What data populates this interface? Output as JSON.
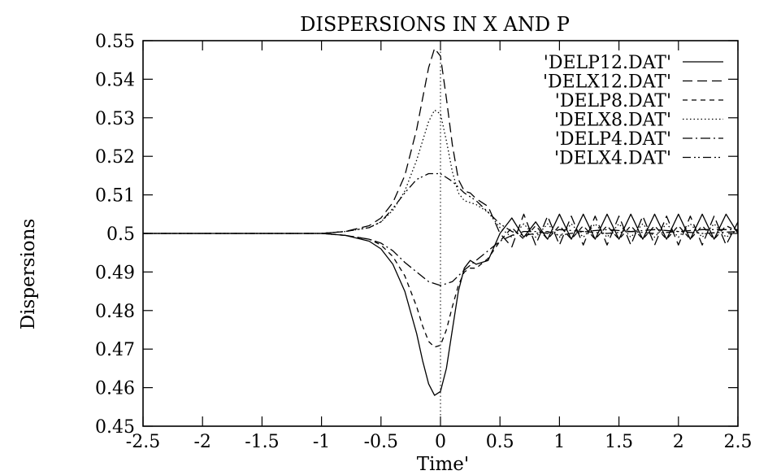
{
  "chart_data": {
    "type": "line",
    "title": "DISPERSIONS IN X AND P",
    "xlabel": "Time'",
    "ylabel": "Dispersions",
    "xlim": [
      -2.5,
      2.5
    ],
    "ylim": [
      0.45,
      0.55
    ],
    "xticks": [
      "-2.5",
      "-2",
      "-1.5",
      "-1",
      "-0.5",
      "0",
      "0.5",
      "1",
      "1.5",
      "2",
      "2.5"
    ],
    "yticks": [
      "0.45",
      "0.46",
      "0.47",
      "0.48",
      "0.49",
      "0.5",
      "0.51",
      "0.52",
      "0.53",
      "0.54",
      "0.55"
    ],
    "grid": false,
    "legend_position": "top-right",
    "annotations": [
      "vertical dotted line at x = 0"
    ],
    "series": [
      {
        "name": "'DELP12.DAT'",
        "linestyle": "solid",
        "x": [
          -2.5,
          -2.0,
          -1.5,
          -1.0,
          -0.8,
          -0.6,
          -0.5,
          -0.4,
          -0.3,
          -0.2,
          -0.15,
          -0.1,
          -0.05,
          0.0,
          0.05,
          0.1,
          0.15,
          0.2,
          0.25,
          0.3,
          0.4,
          0.5,
          0.6,
          0.7,
          0.8,
          0.9,
          1.0,
          1.1,
          1.2,
          1.3,
          1.4,
          1.5,
          1.6,
          1.7,
          1.8,
          1.9,
          2.0,
          2.1,
          2.2,
          2.3,
          2.4,
          2.5
        ],
        "y": [
          0.5,
          0.5,
          0.5,
          0.5,
          0.4995,
          0.498,
          0.496,
          0.492,
          0.485,
          0.474,
          0.467,
          0.461,
          0.458,
          0.459,
          0.465,
          0.475,
          0.485,
          0.491,
          0.493,
          0.492,
          0.493,
          0.5,
          0.504,
          0.499,
          0.503,
          0.4985,
          0.505,
          0.4985,
          0.505,
          0.4985,
          0.505,
          0.4985,
          0.505,
          0.4985,
          0.505,
          0.4985,
          0.505,
          0.4985,
          0.505,
          0.4985,
          0.505,
          0.5
        ]
      },
      {
        "name": "'DELX12.DAT'",
        "linestyle": "dashed",
        "x": [
          -2.5,
          -2.0,
          -1.5,
          -1.0,
          -0.8,
          -0.6,
          -0.5,
          -0.4,
          -0.3,
          -0.2,
          -0.15,
          -0.1,
          -0.05,
          0.0,
          0.05,
          0.1,
          0.15,
          0.2,
          0.25,
          0.3,
          0.4,
          0.5,
          0.6,
          0.7,
          0.8,
          0.9,
          1.0,
          1.1,
          1.2,
          1.3,
          1.4,
          1.5,
          1.6,
          1.7,
          1.8,
          1.9,
          2.0,
          2.1,
          2.2,
          2.3,
          2.4,
          2.5
        ],
        "y": [
          0.5,
          0.5,
          0.5,
          0.5,
          0.5005,
          0.502,
          0.504,
          0.508,
          0.515,
          0.527,
          0.535,
          0.543,
          0.548,
          0.546,
          0.535,
          0.523,
          0.514,
          0.511,
          0.5105,
          0.509,
          0.507,
          0.5,
          0.4965,
          0.505,
          0.497,
          0.5045,
          0.497,
          0.5045,
          0.497,
          0.5045,
          0.497,
          0.5045,
          0.497,
          0.5045,
          0.497,
          0.5045,
          0.497,
          0.5045,
          0.497,
          0.5045,
          0.497,
          0.503
        ]
      },
      {
        "name": "'DELP8.DAT'",
        "linestyle": "short-dashed",
        "x": [
          -2.5,
          -2.0,
          -1.5,
          -1.0,
          -0.8,
          -0.6,
          -0.5,
          -0.4,
          -0.3,
          -0.2,
          -0.15,
          -0.1,
          -0.05,
          0.0,
          0.05,
          0.1,
          0.15,
          0.2,
          0.25,
          0.3,
          0.4,
          0.5,
          0.6,
          0.7,
          0.8,
          0.9,
          1.0,
          1.1,
          1.2,
          1.3,
          1.4,
          1.5,
          1.6,
          1.7,
          1.8,
          1.9,
          2.0,
          2.1,
          2.2,
          2.3,
          2.4,
          2.5
        ],
        "y": [
          0.5,
          0.5,
          0.5,
          0.5,
          0.4995,
          0.4985,
          0.497,
          0.494,
          0.489,
          0.481,
          0.476,
          0.472,
          0.4705,
          0.471,
          0.475,
          0.481,
          0.4865,
          0.49,
          0.491,
          0.491,
          0.4935,
          0.498,
          0.5015,
          0.4985,
          0.502,
          0.4985,
          0.502,
          0.4985,
          0.502,
          0.4985,
          0.502,
          0.4985,
          0.502,
          0.4985,
          0.502,
          0.4985,
          0.502,
          0.4985,
          0.502,
          0.4985,
          0.502,
          0.5005
        ]
      },
      {
        "name": "'DELX8.DAT'",
        "linestyle": "dotted",
        "x": [
          -2.5,
          -2.0,
          -1.5,
          -1.0,
          -0.8,
          -0.6,
          -0.5,
          -0.4,
          -0.3,
          -0.2,
          -0.15,
          -0.1,
          -0.05,
          0.0,
          0.05,
          0.1,
          0.15,
          0.2,
          0.25,
          0.3,
          0.4,
          0.5,
          0.6,
          0.7,
          0.8,
          0.9,
          1.0,
          1.1,
          1.2,
          1.3,
          1.4,
          1.5,
          1.6,
          1.7,
          1.8,
          1.9,
          2.0,
          2.1,
          2.2,
          2.3,
          2.4,
          2.5
        ],
        "y": [
          0.5,
          0.5,
          0.5,
          0.5,
          0.5005,
          0.5015,
          0.503,
          0.506,
          0.511,
          0.519,
          0.524,
          0.529,
          0.532,
          0.531,
          0.524,
          0.516,
          0.5105,
          0.5085,
          0.508,
          0.5075,
          0.5055,
          0.5015,
          0.499,
          0.5025,
          0.499,
          0.5025,
          0.499,
          0.5025,
          0.499,
          0.5025,
          0.499,
          0.5025,
          0.499,
          0.5025,
          0.499,
          0.5025,
          0.499,
          0.5025,
          0.499,
          0.5025,
          0.499,
          0.501
        ]
      },
      {
        "name": "'DELP4.DAT'",
        "linestyle": "dash-dot",
        "x": [
          -2.5,
          -2.0,
          -1.5,
          -1.0,
          -0.8,
          -0.6,
          -0.5,
          -0.4,
          -0.3,
          -0.2,
          -0.1,
          0.0,
          0.1,
          0.2,
          0.3,
          0.4,
          0.5,
          0.6,
          0.7,
          0.8,
          0.9,
          1.0,
          1.2,
          1.4,
          1.6,
          1.8,
          2.0,
          2.2,
          2.5
        ],
        "y": [
          0.5,
          0.5,
          0.5,
          0.5,
          0.4995,
          0.4985,
          0.4975,
          0.4955,
          0.4925,
          0.49,
          0.4875,
          0.4865,
          0.4875,
          0.4905,
          0.493,
          0.4955,
          0.498,
          0.4995,
          0.5005,
          0.5005,
          0.5,
          0.501,
          0.5005,
          0.501,
          0.5005,
          0.501,
          0.5005,
          0.501,
          0.501
        ]
      },
      {
        "name": "'DELX4.DAT'",
        "linestyle": "dash-dot-dot",
        "x": [
          -2.5,
          -2.0,
          -1.5,
          -1.0,
          -0.8,
          -0.6,
          -0.5,
          -0.4,
          -0.3,
          -0.2,
          -0.1,
          0.0,
          0.1,
          0.2,
          0.3,
          0.4,
          0.5,
          0.6,
          0.7,
          0.8,
          0.9,
          1.0,
          1.2,
          1.4,
          1.6,
          1.8,
          2.0,
          2.2,
          2.5
        ],
        "y": [
          0.5,
          0.5,
          0.5,
          0.5,
          0.5005,
          0.5015,
          0.503,
          0.5065,
          0.5105,
          0.514,
          0.5155,
          0.5155,
          0.5135,
          0.5105,
          0.5085,
          0.5055,
          0.5025,
          0.5005,
          0.4995,
          0.5,
          0.5005,
          0.4995,
          0.5005,
          0.5,
          0.5005,
          0.5,
          0.5005,
          0.5,
          0.5005
        ]
      }
    ]
  }
}
